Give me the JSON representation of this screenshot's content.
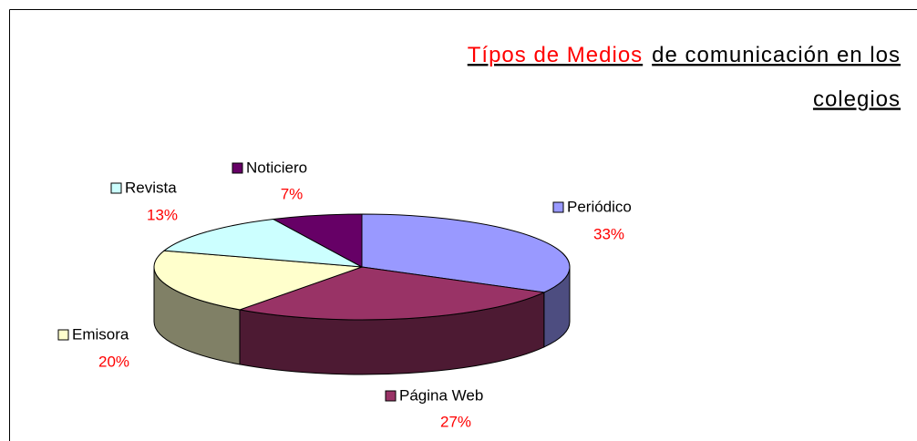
{
  "chart_data": {
    "type": "pie3d",
    "title_parts": [
      "Típos  de Medios",
      "de comunicación en los",
      "colegios"
    ],
    "title_colors": [
      "#ff0000",
      "#000000",
      "#000000"
    ],
    "categories": [
      "Periódico",
      "Página Web",
      "Emisora",
      "Revista",
      "Noticiero"
    ],
    "values": [
      33,
      27,
      20,
      13,
      7
    ],
    "value_labels": [
      "33%",
      "27%",
      "20%",
      "13%",
      "7%"
    ],
    "colors": [
      "#9999ff",
      "#993366",
      "#ffffcc",
      "#ccffff",
      "#660066"
    ],
    "label_color": "#ff0000"
  }
}
